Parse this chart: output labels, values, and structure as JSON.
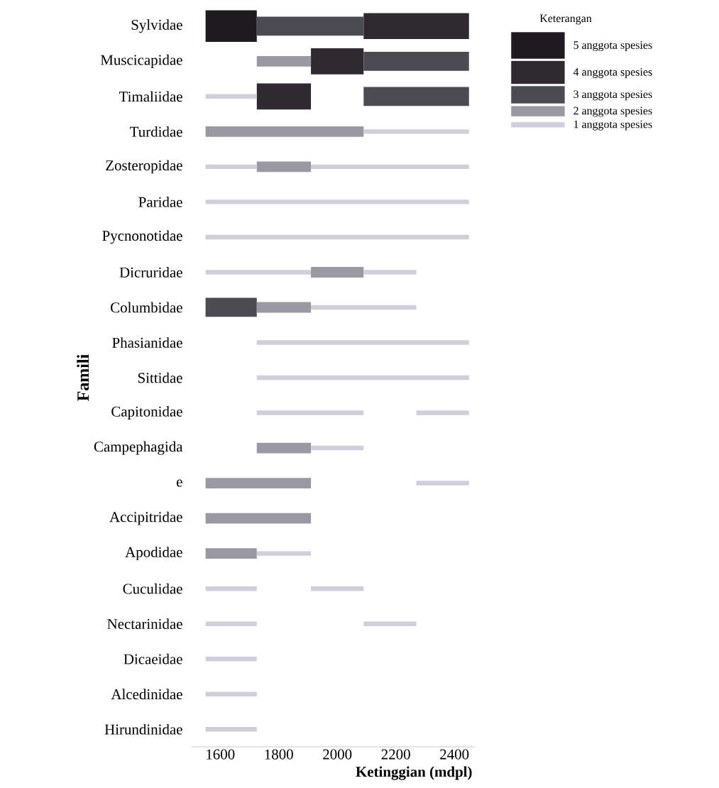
{
  "chart_data": {
    "type": "bar",
    "orientation": "horizontal",
    "categories": [
      "Sylvidae",
      "Muscicapidae",
      "Timaliidae",
      "Turdidae",
      "Zosteropidae",
      "Paridae",
      "Pycnonotidae",
      "Dicruridae",
      "Columbidae",
      "Phasianidae",
      "Sittidae",
      "Capitonidae",
      "Campephagida",
      "e",
      "Accipitridae",
      "Apodidae",
      "Cuculidae",
      "Nectarinidae",
      "Dicaeidae",
      "Alcedinidae",
      "Hirundinidae"
    ],
    "series": [
      {
        "name": "5 anggota spesies",
        "color": "#1e1a20",
        "base": [
          1550,
          null,
          null,
          null,
          null,
          null,
          null,
          null,
          null,
          null,
          null,
          null,
          null,
          null,
          null,
          null,
          null,
          null,
          null,
          null,
          null
        ],
        "values": [
          175,
          null,
          null,
          null,
          null,
          null,
          null,
          null,
          null,
          null,
          null,
          null,
          null,
          null,
          null,
          null,
          null,
          null,
          null,
          null,
          null
        ]
      },
      {
        "name": "4 anggota spesies",
        "color": "#2f2a2f",
        "base": [
          2090,
          1910,
          1725,
          null,
          null,
          null,
          null,
          null,
          null,
          null,
          null,
          null,
          null,
          null,
          null,
          null,
          null,
          null,
          null,
          null,
          null
        ],
        "values": [
          360,
          180,
          185,
          null,
          null,
          null,
          null,
          null,
          null,
          null,
          null,
          null,
          null,
          null,
          null,
          null,
          null,
          null,
          null,
          null,
          null
        ]
      },
      {
        "name": "3 anggota spesies",
        "color": "#4c4a52",
        "base": [
          1725,
          2090,
          2090,
          null,
          null,
          null,
          null,
          null,
          1550,
          null,
          null,
          null,
          null,
          null,
          null,
          null,
          null,
          null,
          null,
          null,
          null
        ],
        "values": [
          365,
          360,
          360,
          null,
          null,
          null,
          null,
          null,
          175,
          null,
          null,
          null,
          null,
          null,
          null,
          null,
          null,
          null,
          null,
          null,
          null
        ]
      },
      {
        "name": "2 anggota spesies",
        "color": "#9a98a2",
        "base": [
          null,
          1725,
          null,
          1550,
          1725,
          null,
          null,
          1910,
          1725,
          null,
          null,
          null,
          1725,
          1550,
          1550,
          1550,
          null,
          null,
          null,
          null,
          null
        ],
        "values": [
          null,
          185,
          null,
          540,
          185,
          null,
          null,
          180,
          185,
          null,
          null,
          null,
          185,
          360,
          360,
          175,
          null,
          null,
          null,
          null,
          null
        ]
      },
      {
        "name": "1 anggota spesies",
        "color": "#cfcfdc",
        "base": [
          null,
          null,
          1550,
          2090,
          1550,
          1550,
          1550,
          1550,
          1910,
          1725,
          1725,
          1725,
          1910,
          2270,
          null,
          1725,
          1550,
          1550,
          1550,
          1550,
          1550
        ],
        "values": [
          null,
          null,
          175,
          360,
          175,
          900,
          900,
          360,
          360,
          725,
          725,
          365,
          180,
          180,
          null,
          185,
          175,
          175,
          175,
          175,
          175
        ]
      },
      {
        "color": "#cfcfdc",
        "base": [
          null,
          null,
          null,
          null,
          1910,
          null,
          null,
          2090,
          null,
          null,
          null,
          2270,
          null,
          null,
          null,
          null,
          1910,
          2090,
          null,
          null,
          null
        ],
        "values": [
          null,
          null,
          null,
          null,
          540,
          null,
          null,
          180,
          null,
          null,
          null,
          180,
          null,
          null,
          null,
          null,
          180,
          180,
          null,
          null,
          null
        ]
      }
    ],
    "xlim": [
      1500,
      2470
    ],
    "xticks": [
      1600,
      1800,
      2000,
      2200,
      2400
    ],
    "xlabel": "Ketinggian (mdpl)",
    "ylabel": "Famili",
    "legend_title": "Keterangan",
    "legend": "top right"
  }
}
